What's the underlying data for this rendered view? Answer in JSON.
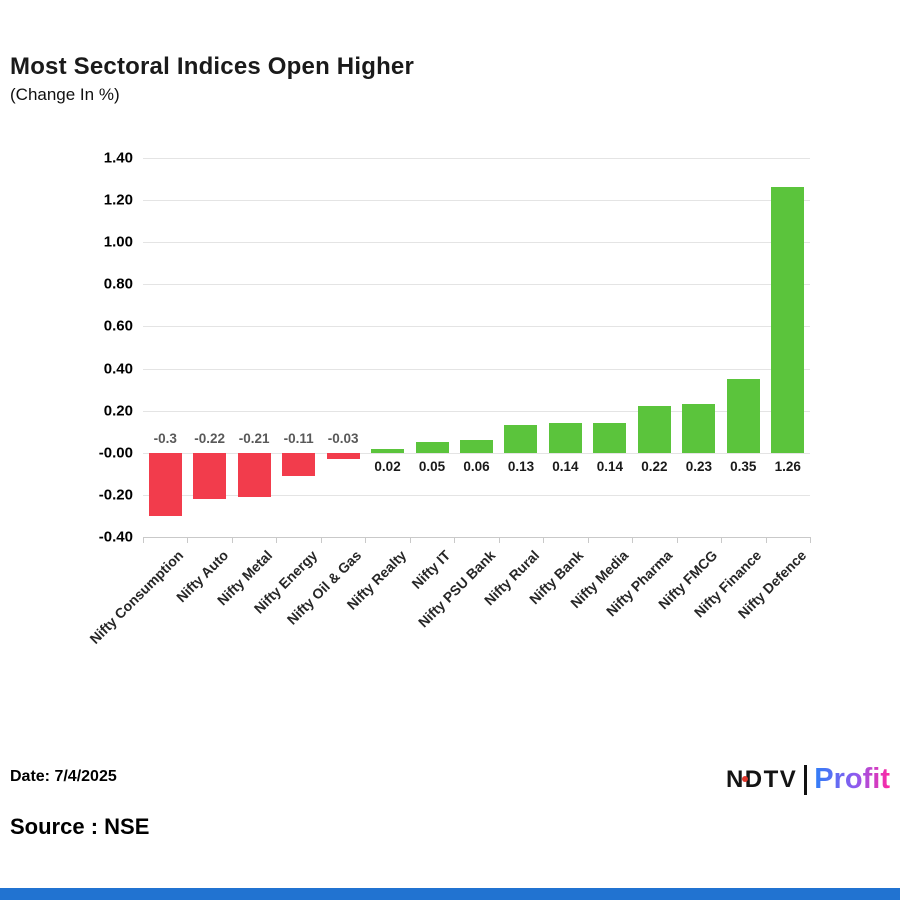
{
  "chart_data": {
    "type": "bar",
    "title": "Most Sectoral Indices Open Higher",
    "subtitle": "(Change In %)",
    "categories": [
      "Nifty Consumption",
      "Nifty Auto",
      "Nifty Metal",
      "Nifty Energy",
      "Nifty Oil & Gas",
      "Nifty Realty",
      "Nifty IT",
      "Nifty PSU Bank",
      "Nifty Rural",
      "Nifty Bank",
      "Nifty Media",
      "Nifty Pharma",
      "Nifty FMCG",
      "Nifty Finance",
      "Nifty Defence"
    ],
    "values": [
      -0.3,
      -0.22,
      -0.21,
      -0.11,
      -0.03,
      0.02,
      0.05,
      0.06,
      0.13,
      0.14,
      0.14,
      0.22,
      0.23,
      0.35,
      1.26
    ],
    "value_labels": [
      "-0.3",
      "-0.22",
      "-0.21",
      "-0.11",
      "-0.03",
      "0.02",
      "0.05",
      "0.06",
      "0.13",
      "0.14",
      "0.14",
      "0.22",
      "0.23",
      "0.35",
      "1.26"
    ],
    "xlabel": "",
    "ylabel": "",
    "ylim": [
      -0.4,
      1.4
    ],
    "y_ticks": [
      1.4,
      1.2,
      1.0,
      0.8,
      0.6,
      0.4,
      0.2,
      0.0,
      -0.2,
      -0.4
    ],
    "y_tick_labels": [
      "1.40",
      "1.20",
      "1.00",
      "0.80",
      "0.60",
      "0.40",
      "0.20",
      "-0.00",
      "-0.20",
      "-0.40"
    ],
    "grid": true,
    "legend": false
  },
  "footer": {
    "date": "Date: 7/4/2025",
    "source": "Source : NSE"
  },
  "brand": {
    "ndtv": "NDTV",
    "profit": "Profit"
  },
  "colors": {
    "positive_bar": "#5BC43C",
    "negative_bar": "#F23C4C",
    "positive_label": "#1a1a1a",
    "negative_label": "#595959",
    "grid": "#e4e4e4",
    "axis": "#c9c9c9",
    "ndtv_dot": "#E0362B",
    "profit_gradient_start": "#2F7FF7",
    "profit_gradient_mid": "#8E5BEF",
    "profit_gradient_end": "#FF27A3",
    "bottom_bar": "#2173D1"
  }
}
